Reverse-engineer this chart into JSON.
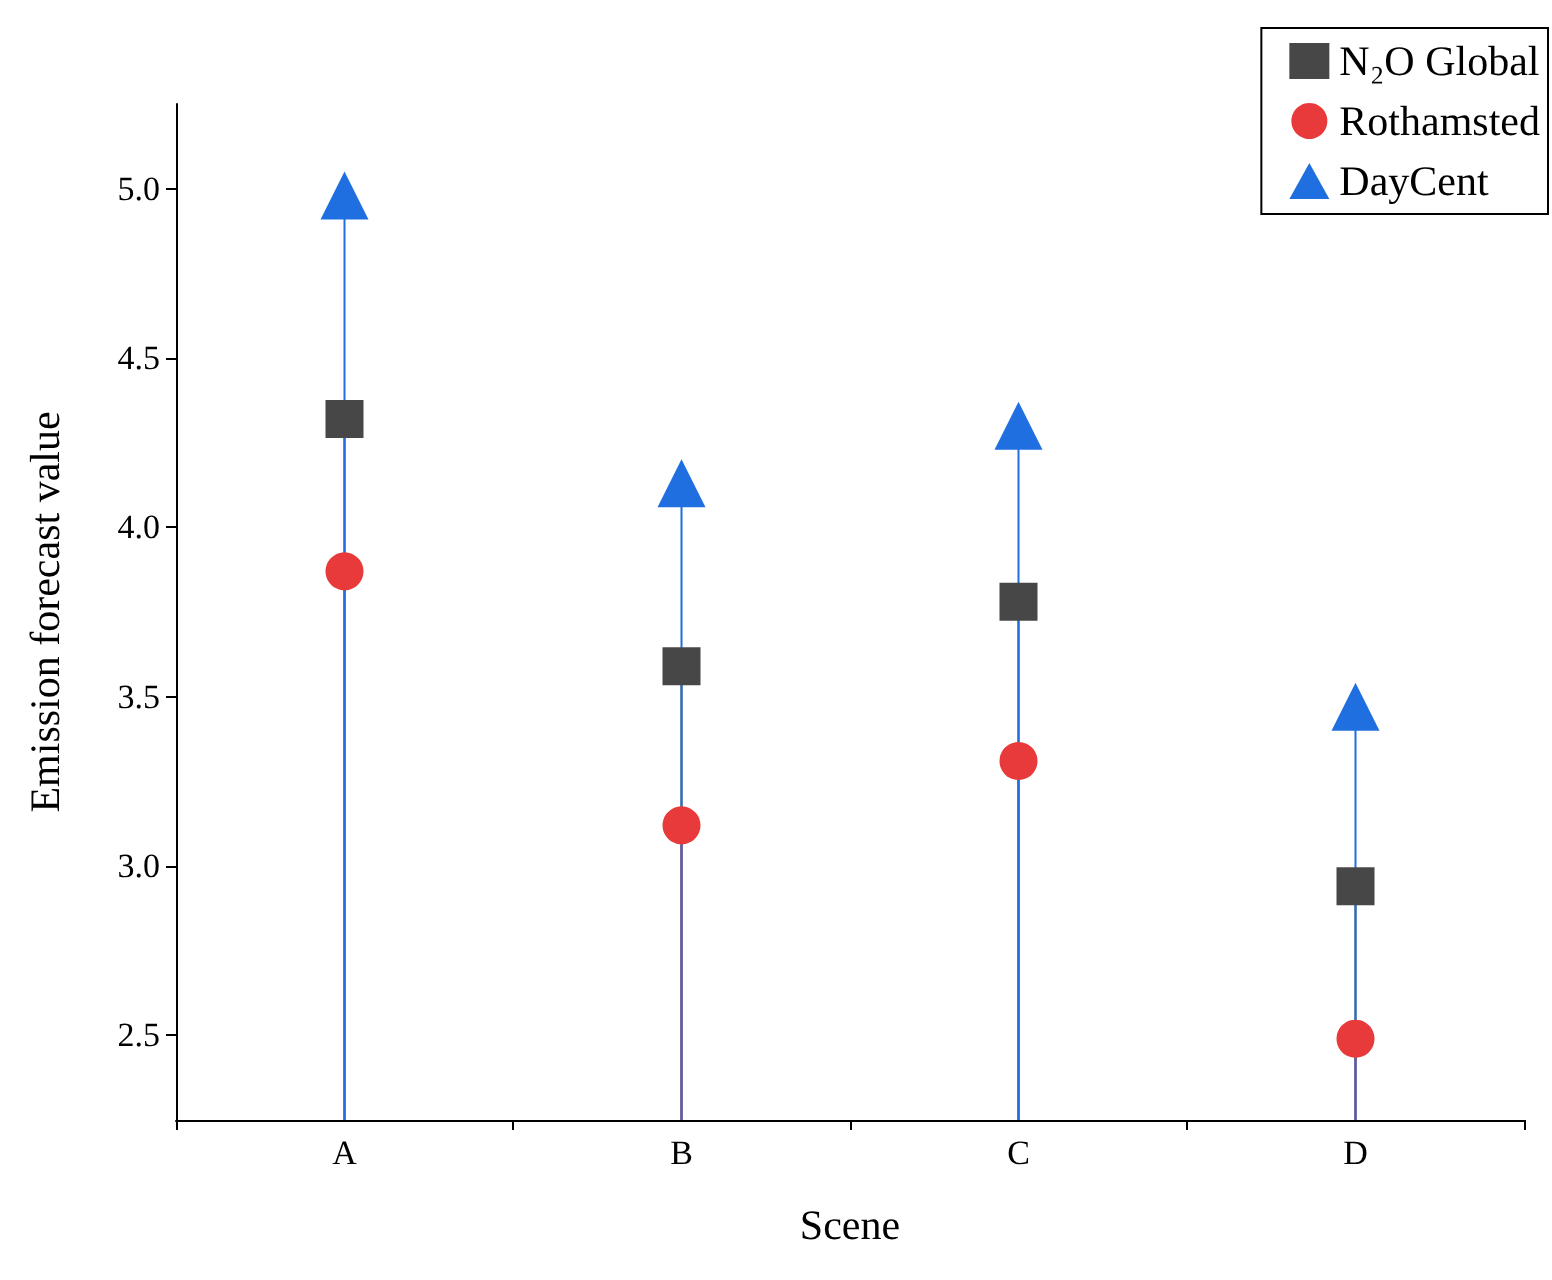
{
  "chart_data": {
    "type": "lollipop",
    "xlabel": "Scene",
    "ylabel": "Emission forecast value",
    "categories": [
      "A",
      "B",
      "C",
      "D"
    ],
    "ylim": [
      2.25,
      5.25
    ],
    "yticks": [
      2.5,
      {
        "value": 3,
        "label": "3.0"
      },
      3.5,
      {
        "value": 4,
        "label": "4.0"
      },
      4.5,
      {
        "value": 5,
        "label": "5.0"
      }
    ],
    "legend": "top right",
    "series": [
      {
        "name": "N₂O Global",
        "color": "#474747",
        "marker": "square",
        "values": [
          4.32,
          3.59,
          3.78,
          2.94
        ]
      },
      {
        "name": "Rothamsted",
        "color": "#e83a3a",
        "marker": "circle",
        "values": [
          3.87,
          3.12,
          3.31,
          2.49
        ]
      },
      {
        "name": "DayCent",
        "color": "#1f6fe0",
        "marker": "triangle",
        "values": [
          4.98,
          4.13,
          4.3,
          3.47
        ]
      }
    ]
  }
}
